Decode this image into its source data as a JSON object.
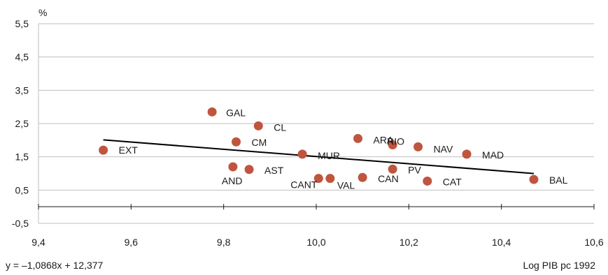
{
  "chart_data": {
    "type": "scatter",
    "ylabel": "%",
    "xlabel": "Log PIB pc 1992",
    "equation": "y = –1,0868x + 12,377",
    "xlim": [
      9.4,
      10.6
    ],
    "ylim": [
      -0.5,
      5.5
    ],
    "x_ticks": [
      "9,4",
      "9,6",
      "9,8",
      "10,0",
      "10,2",
      "10,4",
      "10,6"
    ],
    "y_ticks": [
      "5,5",
      "4,5",
      "3,5",
      "2,5",
      "1,5",
      "0,5",
      "-0,5"
    ],
    "grid": true,
    "points": [
      {
        "label": "EXT",
        "x": 9.54,
        "y": 1.7
      },
      {
        "label": "GAL",
        "x": 9.775,
        "y": 2.85
      },
      {
        "label": "CL",
        "x": 9.875,
        "y": 2.43
      },
      {
        "label": "CM",
        "x": 9.827,
        "y": 1.95
      },
      {
        "label": "AND",
        "x": 9.82,
        "y": 1.2
      },
      {
        "label": "AST",
        "x": 9.855,
        "y": 1.12
      },
      {
        "label": "MUR",
        "x": 9.97,
        "y": 1.58
      },
      {
        "label": "CANT",
        "x": 10.005,
        "y": 0.85
      },
      {
        "label": "VAL",
        "x": 10.03,
        "y": 0.85
      },
      {
        "label": "CAN",
        "x": 10.1,
        "y": 0.88
      },
      {
        "label": "ARA",
        "x": 10.09,
        "y": 2.05
      },
      {
        "label": "RIO",
        "x": 10.165,
        "y": 1.86
      },
      {
        "label": "NAV",
        "x": 10.22,
        "y": 1.8
      },
      {
        "label": "PV",
        "x": 10.165,
        "y": 1.13
      },
      {
        "label": "CAT",
        "x": 10.24,
        "y": 0.77
      },
      {
        "label": "MAD",
        "x": 10.325,
        "y": 1.58
      },
      {
        "label": "BAL",
        "x": 10.47,
        "y": 0.82
      }
    ],
    "trendline": {
      "slope": -1.0868,
      "intercept": 12.377,
      "x_start": 9.54,
      "x_end": 10.47
    },
    "colors": {
      "point": "#c0553f",
      "trendline": "#000000",
      "grid": "#bfbfbf",
      "axis": "#1a1a1a"
    }
  }
}
